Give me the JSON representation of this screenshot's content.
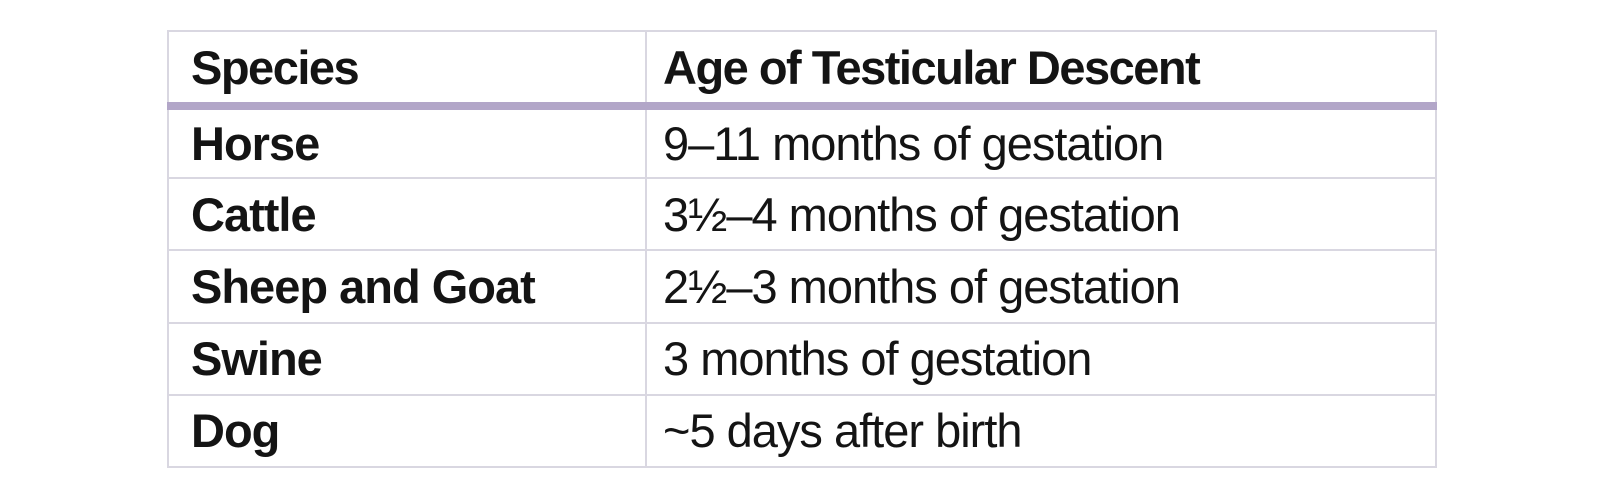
{
  "table": {
    "columns": [
      {
        "label": "Species"
      },
      {
        "label": "Age of Testicular Descent"
      }
    ],
    "rows": [
      {
        "species": "Horse",
        "age": "9–11 months of gestation"
      },
      {
        "species": "Cattle",
        "age": "3½–4 months of gestation"
      },
      {
        "species": "Sheep and Goat",
        "age": "2½–3 months of gestation"
      },
      {
        "species": "Swine",
        "age": "3 months of gestation"
      },
      {
        "species": "Dog",
        "age": "~5 days after birth"
      }
    ],
    "colors": {
      "header_underline": "#b2a6c8",
      "cell_border": "#d9d7e1",
      "text": "#141414",
      "background": "#ffffff"
    }
  }
}
